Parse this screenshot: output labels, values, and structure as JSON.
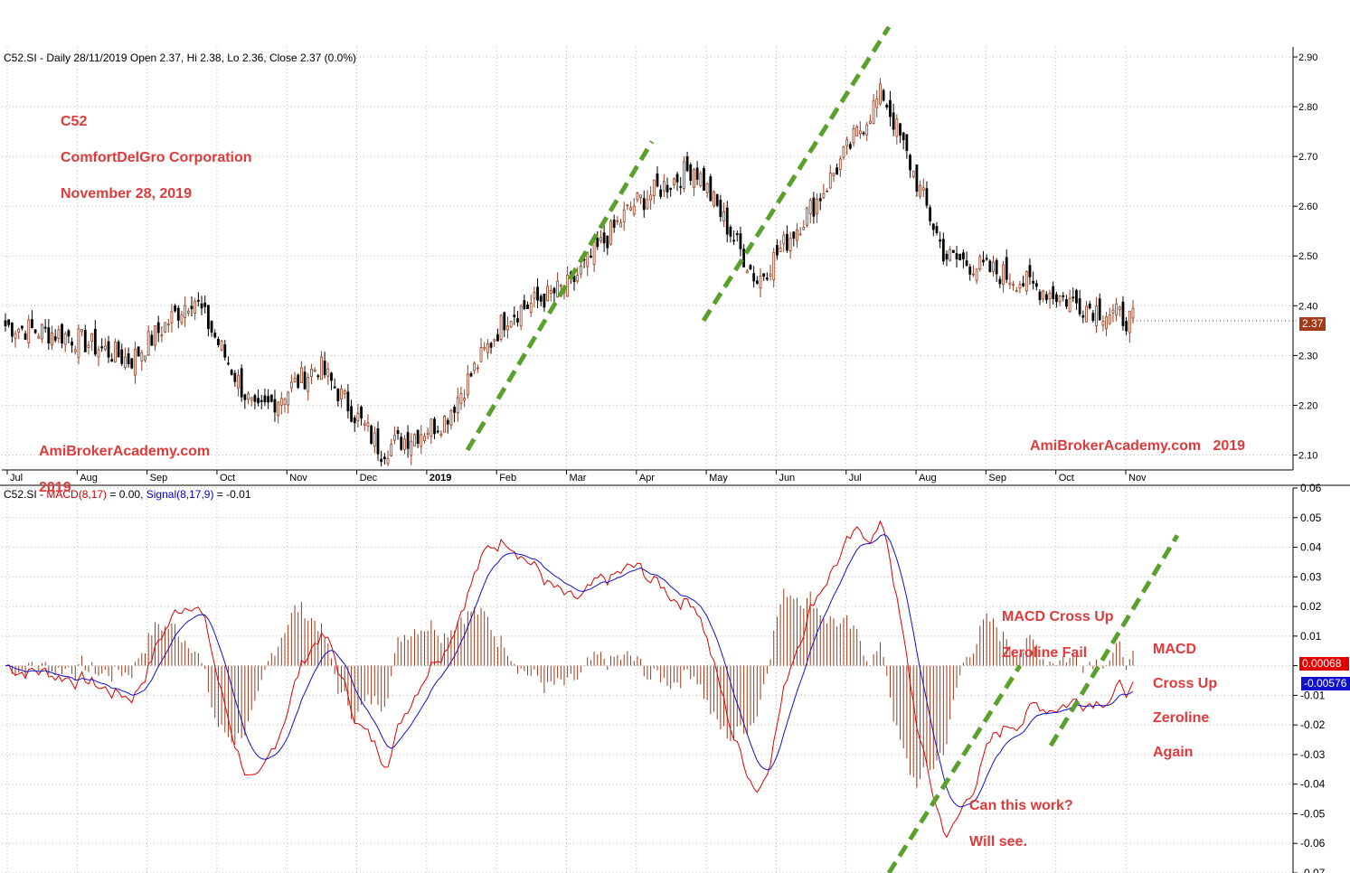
{
  "price_panel": {
    "header": "C52.SI - Daily 28/11/2019 Open 2.37, Hi 2.38, Lo 2.36, Close 2.37 (0.0%)",
    "last_price_label": "2.37",
    "annotations": {
      "ticker": "C52",
      "company": "ComfortDelGro Corporation",
      "date": "November 28, 2019",
      "watermark_left_1": "AmiBrokerAcademy.com",
      "watermark_left_2": "2019",
      "watermark_right": "AmiBrokerAcademy.com   2019"
    }
  },
  "macd_panel": {
    "header_prefix": "C52.SI - ",
    "header_macd": "MACD(8,17)",
    "header_macd_val": " = 0.00, ",
    "header_signal": "Signal(8,17,9)",
    "header_signal_val": " = -0.01",
    "hist_label": "0.00068",
    "signal_label": "-0.00576",
    "annotations": {
      "cross_fail_1": "MACD Cross Up",
      "cross_fail_2": "Zeroline Fail",
      "cross_again_1": "MACD",
      "cross_again_2": "Cross Up",
      "cross_again_3": "Zeroline",
      "cross_again_4": "Again",
      "question_1": "Can this work?",
      "question_2": "Will see."
    }
  },
  "colors": {
    "annotation": "#e03a3a",
    "trendline": "#5aa02c",
    "candle": "#000000",
    "bar_up": "#9b3a1a",
    "macd_line": "#e00000",
    "signal_line": "#1010cc",
    "histogram": "#9b3a1a",
    "last_price_badge": "#a33a1a",
    "hist_badge": "#e00000",
    "signal_badge": "#1010cc"
  },
  "chart_data": [
    {
      "type": "candlestick",
      "title": "C52.SI - Daily",
      "x_labels": [
        "Jul",
        "Aug",
        "Sep",
        "Oct",
        "Nov",
        "Dec",
        "2019",
        "Feb",
        "Mar",
        "Apr",
        "May",
        "Jun",
        "Jul",
        "Aug",
        "Sep",
        "Oct",
        "Nov"
      ],
      "ylim": [
        2.07,
        2.92
      ],
      "y_ticks": [
        2.1,
        2.2,
        2.3,
        2.4,
        2.5,
        2.6,
        2.7,
        2.8,
        2.9
      ],
      "approx_close_by_month": [
        {
          "month": "Jul 2018",
          "close": 2.36
        },
        {
          "month": "Aug 2018",
          "close": 2.34
        },
        {
          "month": "Sep 2018",
          "close": 2.29
        },
        {
          "month": "Oct 2018",
          "close": 2.42
        },
        {
          "month": "Oct 2018 (late)",
          "close": 2.18
        },
        {
          "month": "Nov 2018",
          "close": 2.28
        },
        {
          "month": "Dec 2018",
          "close": 2.11
        },
        {
          "month": "Jan 2019",
          "close": 2.17
        },
        {
          "month": "Feb 2019",
          "close": 2.38
        },
        {
          "month": "Mar 2019",
          "close": 2.44
        },
        {
          "month": "Apr 2019",
          "close": 2.6
        },
        {
          "month": "May 2019",
          "close": 2.68
        },
        {
          "month": "May 2019 (late)",
          "close": 2.45
        },
        {
          "month": "Jun 2019",
          "close": 2.62
        },
        {
          "month": "Jul 2019",
          "close": 2.83
        },
        {
          "month": "Aug 2019",
          "close": 2.5
        },
        {
          "month": "Sep 2019",
          "close": 2.46
        },
        {
          "month": "Oct 2019",
          "close": 2.41
        },
        {
          "month": "Nov 2019",
          "close": 2.37
        }
      ]
    },
    {
      "type": "line",
      "title": "MACD(8,17), Signal(8,17,9)",
      "ylim": [
        -0.07,
        0.06
      ],
      "y_ticks": [
        -0.07,
        -0.06,
        -0.05,
        -0.04,
        -0.03,
        -0.02,
        -0.01,
        0.0,
        0.01,
        0.02,
        0.03,
        0.04,
        0.05,
        0.06
      ],
      "series": [
        {
          "name": "MACD(8,17)",
          "value": 0.0
        },
        {
          "name": "Signal(8,17,9)",
          "value": -0.01
        }
      ]
    }
  ]
}
